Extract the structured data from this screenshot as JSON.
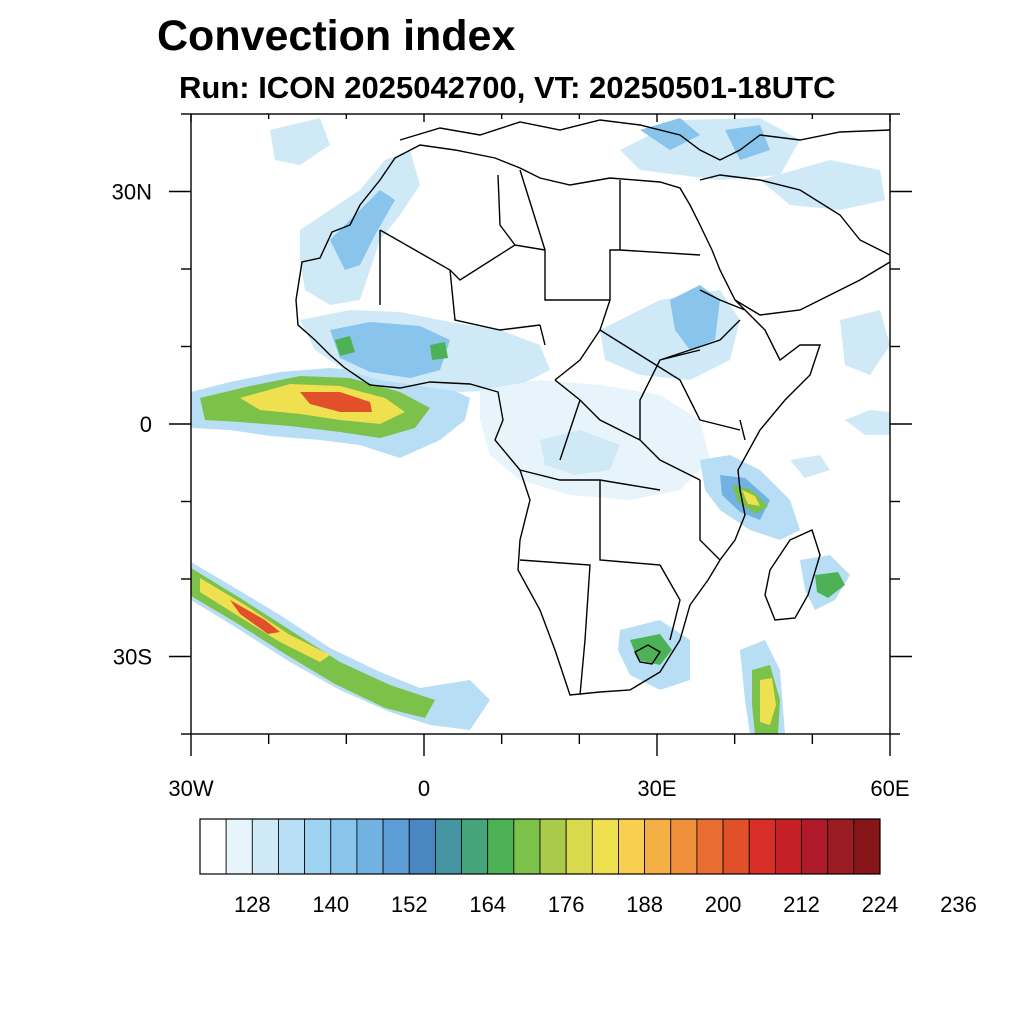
{
  "title": "Convection index",
  "subtitle": "Run: ICON 2025042700,  VT: 20250501-18UTC",
  "map": {
    "lon_range": [
      -30,
      60
    ],
    "lat_range": [
      -40,
      40
    ],
    "lon_ticks": [
      {
        "value": -30,
        "label": "30W"
      },
      {
        "value": 0,
        "label": "0"
      },
      {
        "value": 30,
        "label": "30E"
      },
      {
        "value": 60,
        "label": "60E"
      }
    ],
    "lat_ticks": [
      {
        "value": 30,
        "label": "30N"
      },
      {
        "value": 0,
        "label": "0"
      },
      {
        "value": -30,
        "label": "30S"
      }
    ],
    "minor_lon_step": 10,
    "minor_lat_step": 10
  },
  "colorbar": {
    "colors": [
      "#ffffff",
      "#e8f4fb",
      "#cfe9f7",
      "#b7def4",
      "#9fd3f2",
      "#88c4ec",
      "#71b2e2",
      "#5b9dd4",
      "#4a86c0",
      "#4594a2",
      "#46a47a",
      "#4cb255",
      "#7bc14a",
      "#aacb49",
      "#d8d94d",
      "#efe050",
      "#f8cf4f",
      "#f5b045",
      "#f0903c",
      "#ea6e32",
      "#e2502b",
      "#d83028",
      "#c62027",
      "#b0192a",
      "#9a1b22",
      "#861618"
    ],
    "labels": [
      "128",
      "140",
      "152",
      "164",
      "176",
      "188",
      "200",
      "212",
      "224",
      "236"
    ],
    "label_start_index": 2,
    "label_step": 3
  }
}
